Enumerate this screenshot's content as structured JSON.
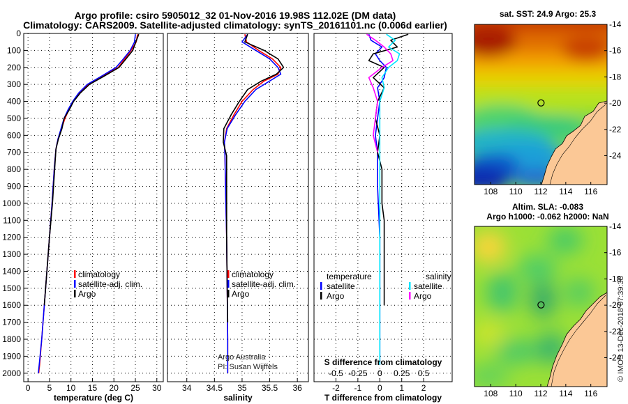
{
  "title": {
    "line1": "Argo profile: csiro 5905012_32 01-Nov-2016 19.98S 112.02E (DM data)",
    "line2": "Climatology: CARS2009. Satellite-adjusted climatology: synTS_20161101.nc (0.006d earlier)"
  },
  "colors": {
    "climatology": "#ff0000",
    "satellite": "#0000ff",
    "argo": "#000000",
    "sat_salinity": "#00e5ff",
    "argo_salinity": "#ff00ff"
  },
  "credits": {
    "line1": "Argo Australia",
    "line2": "PI: Susan Wijffels",
    "side": "© IMOS 13-Dec-2018 07:39:38"
  },
  "chart_data": [
    {
      "id": "temperature",
      "type": "line",
      "xlabel": "temperature (deg C)",
      "ylabel": "",
      "xlim": [
        -1,
        31.5
      ],
      "ylim": [
        2050,
        0
      ],
      "xticks": [
        0,
        5,
        10,
        15,
        20,
        25,
        30
      ],
      "yticks": [
        0,
        100,
        200,
        300,
        400,
        500,
        600,
        700,
        800,
        900,
        1000,
        1100,
        1200,
        1300,
        1400,
        1500,
        1600,
        1700,
        1800,
        1900,
        2000
      ],
      "legend": {
        "position": "lower-center",
        "entries": [
          "climatology",
          "satellite-adj. clim.",
          "Argo"
        ]
      },
      "series": [
        {
          "name": "climatology",
          "color": "#ff0000",
          "points": [
            [
              25.5,
              5
            ],
            [
              25.2,
              50
            ],
            [
              24.0,
              100
            ],
            [
              22.5,
              150
            ],
            [
              21.0,
              200
            ],
            [
              17.5,
              250
            ],
            [
              14.0,
              300
            ],
            [
              12.0,
              350
            ],
            [
              10.5,
              400
            ],
            [
              9.5,
              450
            ],
            [
              8.6,
              500
            ],
            [
              7.8,
              560
            ],
            [
              7.0,
              620
            ],
            [
              6.5,
              680
            ],
            [
              6.1,
              800
            ],
            [
              5.6,
              1000
            ],
            [
              5.0,
              1200
            ],
            [
              4.4,
              1400
            ],
            [
              3.8,
              1600
            ],
            [
              3.2,
              1800
            ],
            [
              2.7,
              1950
            ],
            [
              2.5,
              2000
            ]
          ]
        },
        {
          "name": "satellite-adj. clim.",
          "color": "#0000ff",
          "points": [
            [
              25.0,
              5
            ],
            [
              24.8,
              50
            ],
            [
              23.8,
              100
            ],
            [
              22.2,
              150
            ],
            [
              20.5,
              200
            ],
            [
              17.2,
              250
            ],
            [
              13.8,
              300
            ],
            [
              11.8,
              350
            ],
            [
              10.4,
              400
            ],
            [
              9.3,
              450
            ],
            [
              8.4,
              500
            ],
            [
              7.7,
              560
            ],
            [
              7.0,
              620
            ],
            [
              6.5,
              680
            ],
            [
              6.1,
              800
            ],
            [
              5.6,
              1000
            ],
            [
              5.0,
              1200
            ],
            [
              4.4,
              1400
            ],
            [
              3.8,
              1600
            ],
            [
              3.2,
              1800
            ],
            [
              2.6,
              1950
            ],
            [
              2.4,
              2000
            ]
          ]
        },
        {
          "name": "Argo",
          "color": "#000000",
          "points": [
            [
              25.8,
              5
            ],
            [
              25.1,
              50
            ],
            [
              24.4,
              100
            ],
            [
              22.8,
              150
            ],
            [
              21.2,
              200
            ],
            [
              17.8,
              250
            ],
            [
              14.3,
              300
            ],
            [
              12.2,
              350
            ],
            [
              10.6,
              400
            ],
            [
              9.6,
              450
            ],
            [
              8.4,
              500
            ],
            [
              7.9,
              560
            ],
            [
              7.1,
              620
            ],
            [
              6.5,
              680
            ],
            [
              6.2,
              800
            ],
            [
              5.7,
              1000
            ],
            [
              5.0,
              1200
            ],
            [
              4.4,
              1400
            ],
            [
              3.8,
              1600
            ]
          ]
        }
      ]
    },
    {
      "id": "salinity",
      "type": "line",
      "xlabel": "salinity",
      "ylabel": "",
      "xlim": [
        33.65,
        36.2
      ],
      "ylim": [
        2050,
        0
      ],
      "xticks": [
        34,
        34.5,
        35,
        35.5,
        36
      ],
      "legend": {
        "position": "lower-center",
        "entries": [
          "climatology",
          "satellite-adj. clim.",
          "Argo"
        ]
      },
      "series": [
        {
          "name": "climatology",
          "color": "#ff0000",
          "points": [
            [
              35.05,
              5
            ],
            [
              35.08,
              50
            ],
            [
              35.3,
              100
            ],
            [
              35.55,
              150
            ],
            [
              35.7,
              200
            ],
            [
              35.65,
              240
            ],
            [
              35.4,
              280
            ],
            [
              35.2,
              330
            ],
            [
              35.0,
              400
            ],
            [
              34.85,
              480
            ],
            [
              34.72,
              560
            ],
            [
              34.68,
              640
            ],
            [
              34.69,
              720
            ],
            [
              34.7,
              900
            ],
            [
              34.72,
              1200
            ],
            [
              34.73,
              1500
            ],
            [
              34.74,
              1800
            ],
            [
              34.74,
              2000
            ]
          ]
        },
        {
          "name": "satellite-adj. clim.",
          "color": "#0000ff",
          "points": [
            [
              35.1,
              5
            ],
            [
              35.0,
              50
            ],
            [
              35.25,
              100
            ],
            [
              35.5,
              150
            ],
            [
              35.65,
              200
            ],
            [
              35.7,
              240
            ],
            [
              35.5,
              280
            ],
            [
              35.25,
              330
            ],
            [
              35.05,
              400
            ],
            [
              34.88,
              480
            ],
            [
              34.73,
              560
            ],
            [
              34.68,
              640
            ],
            [
              34.69,
              720
            ],
            [
              34.7,
              900
            ],
            [
              34.72,
              1200
            ],
            [
              34.73,
              1500
            ],
            [
              34.74,
              1800
            ],
            [
              34.74,
              2000
            ]
          ]
        },
        {
          "name": "Argo",
          "color": "#000000",
          "points": [
            [
              35.1,
              5
            ],
            [
              35.05,
              50
            ],
            [
              35.4,
              100
            ],
            [
              35.65,
              150
            ],
            [
              35.75,
              200
            ],
            [
              35.62,
              240
            ],
            [
              35.35,
              280
            ],
            [
              35.1,
              330
            ],
            [
              34.95,
              400
            ],
            [
              34.8,
              480
            ],
            [
              34.67,
              560
            ],
            [
              34.66,
              640
            ],
            [
              34.72,
              720
            ],
            [
              34.72,
              900
            ],
            [
              34.72,
              1200
            ],
            [
              34.73,
              1500
            ],
            [
              34.74,
              1700
            ]
          ]
        }
      ]
    },
    {
      "id": "difference",
      "type": "line",
      "xlabel": "T difference from climatology",
      "xlabel2": "S difference from climatology",
      "ylabel": "",
      "xlim": [
        -3,
        3.3
      ],
      "ylim": [
        2050,
        0
      ],
      "xticks": [
        -2,
        -1,
        0,
        1,
        2
      ],
      "xticks_top": [
        "-0.5",
        "-0.25",
        "0",
        "0.25",
        "0.5"
      ],
      "legend": {
        "position": "lower-center",
        "left_header": "temperature",
        "right_header": "salinity",
        "left_entries": [
          "satellite",
          "Argo"
        ],
        "right_entries": [
          "satellite",
          "Argo"
        ]
      },
      "series": [
        {
          "name": "temperature satellite",
          "color": "#0000ff",
          "points": [
            [
              -0.5,
              5
            ],
            [
              -0.4,
              40
            ],
            [
              0.1,
              80
            ],
            [
              -0.2,
              120
            ],
            [
              0.0,
              160
            ],
            [
              0.3,
              200
            ],
            [
              0.2,
              260
            ],
            [
              -0.1,
              320
            ],
            [
              0.0,
              400
            ],
            [
              -0.1,
              500
            ],
            [
              -0.2,
              600
            ],
            [
              -0.1,
              700
            ],
            [
              -0.1,
              900
            ],
            [
              0.0,
              1200
            ],
            [
              0.0,
              1500
            ],
            [
              0.0,
              1800
            ],
            [
              0.0,
              1950
            ]
          ]
        },
        {
          "name": "temperature Argo",
          "color": "#000000",
          "points": [
            [
              1.3,
              5
            ],
            [
              0.5,
              40
            ],
            [
              0.8,
              80
            ],
            [
              -0.3,
              120
            ],
            [
              -0.5,
              160
            ],
            [
              0.2,
              200
            ],
            [
              -0.3,
              260
            ],
            [
              0.2,
              320
            ],
            [
              -0.1,
              400
            ],
            [
              -0.2,
              500
            ],
            [
              0.0,
              600
            ],
            [
              -0.1,
              700
            ],
            [
              0.1,
              800
            ],
            [
              0.1,
              900
            ],
            [
              0.1,
              1000
            ],
            [
              0.2,
              1100
            ],
            [
              0.2,
              1200
            ],
            [
              0.2,
              1300
            ],
            [
              0.2,
              1400
            ],
            [
              0.2,
              1500
            ],
            [
              0.2,
              1600
            ]
          ]
        },
        {
          "name": "salinity satellite",
          "color": "#00e5ff",
          "points": [
            [
              0.3,
              5
            ],
            [
              0.7,
              40
            ],
            [
              0.4,
              80
            ],
            [
              0.9,
              120
            ],
            [
              0.8,
              160
            ],
            [
              0.4,
              200
            ],
            [
              0.1,
              260
            ],
            [
              0.2,
              320
            ],
            [
              0.0,
              400
            ],
            [
              0.0,
              500
            ],
            [
              0.0,
              600
            ],
            [
              0.0,
              700
            ],
            [
              0.0,
              900
            ],
            [
              0.0,
              1200
            ],
            [
              0.0,
              1500
            ],
            [
              0.0,
              1800
            ],
            [
              0.0,
              1950
            ]
          ]
        },
        {
          "name": "salinity Argo",
          "color": "#ff00ff",
          "points": [
            [
              -0.6,
              5
            ],
            [
              -0.2,
              40
            ],
            [
              0.2,
              80
            ],
            [
              0.5,
              120
            ],
            [
              0.6,
              160
            ],
            [
              0.1,
              200
            ],
            [
              -0.5,
              260
            ],
            [
              -0.3,
              320
            ],
            [
              -0.1,
              400
            ],
            [
              -0.2,
              500
            ],
            [
              -0.3,
              600
            ],
            [
              -0.1,
              700
            ]
          ]
        }
      ]
    },
    {
      "id": "sst_map",
      "type": "heatmap",
      "title": "sat. SST: 24.9 Argo: 25.3",
      "xlim": [
        106.7,
        117.3
      ],
      "ylim": [
        -26.2,
        -14
      ],
      "xticks": [
        108,
        110,
        112,
        114,
        116
      ],
      "yticks": [
        -14,
        -16,
        -18,
        -20,
        -22,
        -24
      ],
      "marker": {
        "lon": 112.02,
        "lat": -19.98
      }
    },
    {
      "id": "sla_map",
      "type": "heatmap",
      "title": "Altim. SLA: -0.083",
      "title2": "Argo h1000: -0.062 h2000: NaN",
      "xlim": [
        106.7,
        117.3
      ],
      "ylim": [
        -26.2,
        -14
      ],
      "xticks": [
        108,
        110,
        112,
        114,
        116
      ],
      "yticks": [
        -14,
        -16,
        -18,
        -20,
        -22,
        -24
      ],
      "marker": {
        "lon": 112.02,
        "lat": -19.98
      }
    }
  ]
}
